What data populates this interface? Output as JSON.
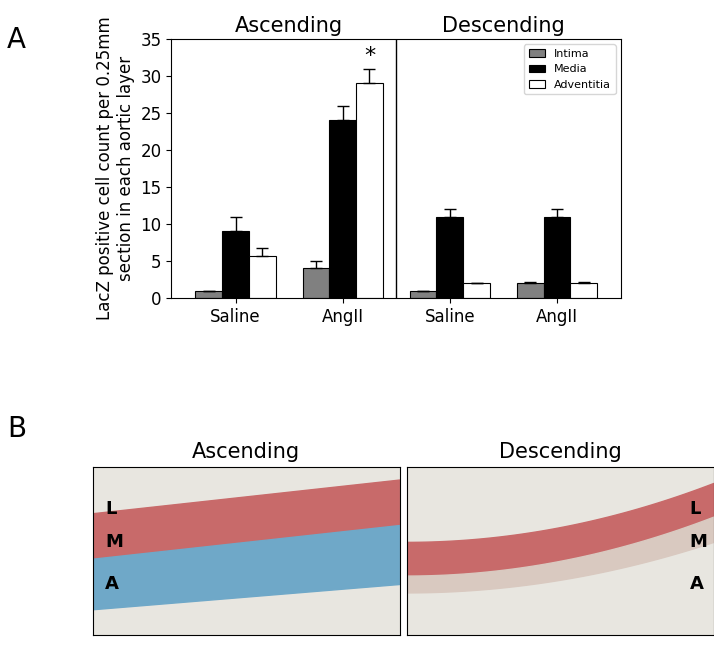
{
  "chart_data": {
    "type": "bar",
    "panel_label": "A",
    "y_label": "LacZ positive cell count per 0.25mm section in each aortic layer",
    "categories": [
      "Saline",
      "AngII",
      "Saline",
      "AngII"
    ],
    "sections": [
      "Ascending",
      "Descending"
    ],
    "series": [
      {
        "name": "Intima",
        "color": "#808080",
        "values": [
          1,
          4,
          1,
          2
        ],
        "errors": [
          0,
          1,
          0,
          0.2
        ]
      },
      {
        "name": "Media",
        "color": "#000000",
        "values": [
          9,
          24,
          11,
          11
        ],
        "errors": [
          2,
          2,
          1,
          1
        ]
      },
      {
        "name": "Adventitia",
        "color": "#ffffff",
        "values": [
          5.7,
          29,
          2,
          2
        ],
        "errors": [
          1,
          2,
          0,
          0.2
        ]
      }
    ],
    "annotations": [
      {
        "text": "*",
        "series": "Adventitia",
        "index": 1
      }
    ],
    "ylim": [
      0,
      35
    ],
    "yticks": [
      0,
      5,
      10,
      15,
      20,
      25,
      30,
      35
    ],
    "legend": "upper right",
    "grid": false
  },
  "image_panel": {
    "panel_label": "B",
    "images": [
      {
        "title": "Ascending",
        "layer_labels": [
          "L",
          "M",
          "A"
        ]
      },
      {
        "title": "Descending",
        "layer_labels": [
          "L",
          "M",
          "A"
        ]
      }
    ]
  }
}
